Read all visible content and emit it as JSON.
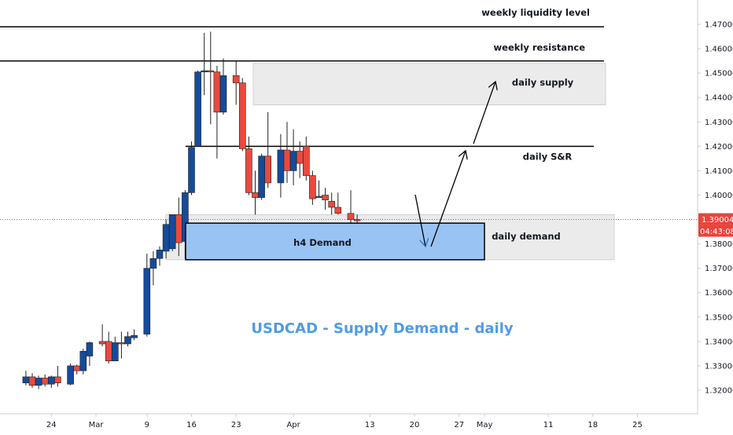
{
  "chart_data": {
    "type": "candlestick",
    "title": "USDCAD - Supply Demand - daily",
    "y_range": [
      1.313,
      1.478
    ],
    "y_ticks": [
      "1.47000",
      "1.46000",
      "1.45000",
      "1.44000",
      "1.43000",
      "1.42000",
      "1.41000",
      "1.40000",
      "1.39000",
      "1.38000",
      "1.37000",
      "1.36000",
      "1.35000",
      "1.34000",
      "1.33000",
      "1.32000"
    ],
    "y_tick_values": [
      1.47,
      1.46,
      1.45,
      1.44,
      1.43,
      1.42,
      1.41,
      1.4,
      1.39,
      1.38,
      1.37,
      1.36,
      1.35,
      1.34,
      1.33,
      1.32
    ],
    "x_ticks": [
      {
        "label": "24",
        "day": -7
      },
      {
        "label": "Mar",
        "day": 0
      },
      {
        "label": "9",
        "day": 8
      },
      {
        "label": "16",
        "day": 15
      },
      {
        "label": "23",
        "day": 22
      },
      {
        "label": "Apr",
        "day": 31
      },
      {
        "label": "13",
        "day": 43
      },
      {
        "label": "20",
        "day": 50
      },
      {
        "label": "27",
        "day": 57
      },
      {
        "label": "May",
        "day": 61
      },
      {
        "label": "11",
        "day": 71
      },
      {
        "label": "18",
        "day": 78
      },
      {
        "label": "25",
        "day": 85
      }
    ],
    "x_range_days": [
      -12,
      87
    ],
    "candles": [
      {
        "day": -11,
        "o": 1.323,
        "h": 1.328,
        "l": 1.322,
        "c": 1.3255
      },
      {
        "day": -10,
        "o": 1.3255,
        "h": 1.327,
        "l": 1.321,
        "c": 1.322
      },
      {
        "day": -9,
        "o": 1.322,
        "h": 1.326,
        "l": 1.3205,
        "c": 1.325
      },
      {
        "day": -8,
        "o": 1.325,
        "h": 1.3265,
        "l": 1.3215,
        "c": 1.3225
      },
      {
        "day": -7,
        "o": 1.3225,
        "h": 1.326,
        "l": 1.321,
        "c": 1.3255
      },
      {
        "day": -6,
        "o": 1.3255,
        "h": 1.33,
        "l": 1.3215,
        "c": 1.323
      },
      {
        "day": -4,
        "o": 1.3225,
        "h": 1.331,
        "l": 1.322,
        "c": 1.33
      },
      {
        "day": -3,
        "o": 1.33,
        "h": 1.3305,
        "l": 1.3265,
        "c": 1.328
      },
      {
        "day": -2,
        "o": 1.328,
        "h": 1.337,
        "l": 1.3265,
        "c": 1.336
      },
      {
        "day": -1,
        "o": 1.334,
        "h": 1.34,
        "l": 1.33,
        "c": 1.3395
      },
      {
        "day": 1,
        "o": 1.34,
        "h": 1.347,
        "l": 1.338,
        "c": 1.339
      },
      {
        "day": 2,
        "o": 1.34,
        "h": 1.344,
        "l": 1.331,
        "c": 1.332
      },
      {
        "day": 3,
        "o": 1.332,
        "h": 1.342,
        "l": 1.332,
        "c": 1.3395
      },
      {
        "day": 4,
        "o": 1.3395,
        "h": 1.344,
        "l": 1.333,
        "c": 1.339
      },
      {
        "day": 5,
        "o": 1.339,
        "h": 1.344,
        "l": 1.338,
        "c": 1.342
      },
      {
        "day": 6,
        "o": 1.3415,
        "h": 1.345,
        "l": 1.3405,
        "c": 1.3425
      },
      {
        "day": 8,
        "o": 1.343,
        "h": 1.376,
        "l": 1.342,
        "c": 1.37
      },
      {
        "day": 9,
        "o": 1.37,
        "h": 1.377,
        "l": 1.363,
        "c": 1.374
      },
      {
        "day": 10,
        "o": 1.374,
        "h": 1.379,
        "l": 1.371,
        "c": 1.3775
      },
      {
        "day": 11,
        "o": 1.377,
        "h": 1.39,
        "l": 1.374,
        "c": 1.388
      },
      {
        "day": 12,
        "o": 1.378,
        "h": 1.392,
        "l": 1.377,
        "c": 1.392
      },
      {
        "day": 13,
        "o": 1.392,
        "h": 1.399,
        "l": 1.375,
        "c": 1.3805
      },
      {
        "day": 14,
        "o": 1.381,
        "h": 1.402,
        "l": 1.374,
        "c": 1.401
      },
      {
        "day": 15,
        "o": 1.401,
        "h": 1.422,
        "l": 1.4,
        "c": 1.4195
      },
      {
        "day": 16,
        "o": 1.42,
        "h": 1.451,
        "l": 1.42,
        "c": 1.4505
      },
      {
        "day": 17,
        "o": 1.4505,
        "h": 1.4665,
        "l": 1.441,
        "c": 1.451
      },
      {
        "day": 18,
        "o": 1.451,
        "h": 1.467,
        "l": 1.429,
        "c": 1.4505
      },
      {
        "day": 19,
        "o": 1.4505,
        "h": 1.453,
        "l": 1.415,
        "c": 1.434
      },
      {
        "day": 20,
        "o": 1.434,
        "h": 1.456,
        "l": 1.433,
        "c": 1.449
      },
      {
        "day": 22,
        "o": 1.449,
        "h": 1.455,
        "l": 1.437,
        "c": 1.446
      },
      {
        "day": 23,
        "o": 1.446,
        "h": 1.448,
        "l": 1.418,
        "c": 1.419
      },
      {
        "day": 24,
        "o": 1.419,
        "h": 1.424,
        "l": 1.4,
        "c": 1.401
      },
      {
        "day": 25,
        "o": 1.401,
        "h": 1.41,
        "l": 1.392,
        "c": 1.399
      },
      {
        "day": 26,
        "o": 1.399,
        "h": 1.417,
        "l": 1.398,
        "c": 1.416
      },
      {
        "day": 27,
        "o": 1.416,
        "h": 1.434,
        "l": 1.403,
        "c": 1.405
      },
      {
        "day": 29,
        "o": 1.405,
        "h": 1.425,
        "l": 1.399,
        "c": 1.4185
      },
      {
        "day": 30,
        "o": 1.4185,
        "h": 1.43,
        "l": 1.405,
        "c": 1.41
      },
      {
        "day": 31,
        "o": 1.41,
        "h": 1.427,
        "l": 1.404,
        "c": 1.418
      },
      {
        "day": 32,
        "o": 1.418,
        "h": 1.422,
        "l": 1.407,
        "c": 1.413
      },
      {
        "day": 33,
        "o": 1.42,
        "h": 1.424,
        "l": 1.406,
        "c": 1.408
      },
      {
        "day": 34,
        "o": 1.408,
        "h": 1.41,
        "l": 1.396,
        "c": 1.3985
      },
      {
        "day": 35,
        "o": 1.399,
        "h": 1.406,
        "l": 1.399,
        "c": 1.3995
      },
      {
        "day": 36,
        "o": 1.4,
        "h": 1.403,
        "l": 1.394,
        "c": 1.398
      },
      {
        "day": 37,
        "o": 1.3975,
        "h": 1.401,
        "l": 1.392,
        "c": 1.395
      },
      {
        "day": 38,
        "o": 1.395,
        "h": 1.401,
        "l": 1.392,
        "c": 1.3925
      },
      {
        "day": 40,
        "o": 1.3925,
        "h": 1.402,
        "l": 1.386,
        "c": 1.39
      },
      {
        "day": 41,
        "o": 1.39,
        "h": 1.392,
        "l": 1.386,
        "c": 1.3895
      }
    ],
    "colors": {
      "up": "#144b9c",
      "down": "#e84a3e",
      "zone_fill": "#ebebeb",
      "demand_fill": "#99c3f3",
      "title": "#4f9be8",
      "current_price": "#e8453c"
    },
    "annotations": {
      "weekly_liquidity": {
        "label": "weekly liquidity level",
        "price": 1.469
      },
      "weekly_resistance": {
        "label": "weekly resistance",
        "price": 1.455
      },
      "daily_supply": {
        "label": "daily supply",
        "price_top": 1.454,
        "price_bottom": 1.437
      },
      "daily_sr": {
        "label": "daily S&R",
        "price": 1.42
      },
      "daily_demand": {
        "label": "daily demand",
        "price_top": 1.392,
        "price_bottom": 1.3735
      },
      "h4_demand": {
        "label": "h4 Demand",
        "price_top": 1.3885,
        "price_bottom": 1.3735
      }
    },
    "current_price": {
      "value": "1.39004",
      "countdown": "04:43:08",
      "price": 1.39
    }
  }
}
